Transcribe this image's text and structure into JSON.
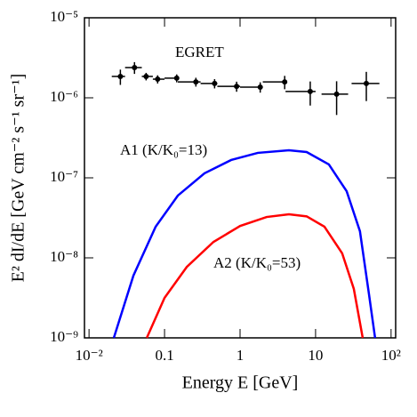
{
  "chart_data": {
    "type": "scatter",
    "xlabel": "Energy E [GeV]",
    "ylabel": "E² dI/dE [GeV cm⁻² s⁻¹ sr⁻¹]",
    "xscale": "log",
    "yscale": "log",
    "xlim": [
      0.0087,
      115
    ],
    "ylim": [
      1e-09,
      1e-05
    ],
    "xticks": [
      {
        "value": 0.01,
        "label": "10⁻²"
      },
      0.1,
      1,
      10,
      {
        "value": 100,
        "label": "10²"
      }
    ],
    "yticks": [
      {
        "value": 1e-09,
        "label": "10⁻⁹"
      },
      {
        "value": 1e-08,
        "label": "10⁻⁸"
      },
      {
        "value": 1e-07,
        "label": "10⁻⁷"
      },
      {
        "value": 1e-06,
        "label": "10⁻⁶"
      },
      {
        "value": 1e-05,
        "label": "10⁻⁵"
      }
    ],
    "series": [
      {
        "name": "EGRET",
        "type": "scatter",
        "color": "#000000",
        "x": [
          0.026,
          0.04,
          0.057,
          0.081,
          0.145,
          0.26,
          0.46,
          0.9,
          1.85,
          3.9,
          8.5,
          19,
          47
        ],
        "values": [
          1.85e-06,
          2.39e-06,
          1.85e-06,
          1.71e-06,
          1.76e-06,
          1.58e-06,
          1.51e-06,
          1.39e-06,
          1.36e-06,
          1.58e-06,
          1.2e-06,
          1.11e-06,
          1.51e-06
        ],
        "yerr": [
          4e-07,
          4e-07,
          2e-07,
          2e-07,
          2e-07,
          2e-07,
          2e-07,
          2e-07,
          2e-07,
          3e-07,
          4e-07,
          5e-07,
          6e-07
        ],
        "x_low": [
          0.02,
          0.03,
          0.05,
          0.07,
          0.1,
          0.15,
          0.3,
          0.5,
          1,
          2,
          4,
          12,
          30
        ],
        "x_high": [
          0.03,
          0.05,
          0.07,
          0.1,
          0.15,
          0.3,
          0.5,
          1,
          2,
          4,
          10,
          27,
          70
        ]
      },
      {
        "name": "A1 (K/K₀=13)",
        "type": "line",
        "color": "#0000ff",
        "x": [
          0.0213,
          0.0387,
          0.0762,
          0.15,
          0.338,
          0.762,
          1.72,
          4.44,
          7.62,
          15.0,
          25.8,
          38.7,
          50.8,
          61.4
        ],
        "values": [
          1e-09,
          6e-09,
          2.45e-08,
          6e-08,
          1.14e-07,
          1.67e-07,
          2.05e-07,
          2.21e-07,
          2.1e-07,
          1.47e-07,
          6.8e-08,
          2.15e-08,
          3.6e-09,
          1e-09
        ]
      },
      {
        "name": "A2 (K/K₀=53)",
        "type": "line",
        "color": "#ff0000",
        "x": [
          0.0582,
          0.1,
          0.197,
          0.444,
          1.0,
          2.25,
          4.44,
          7.62,
          13.1,
          22.5,
          32.1,
          42.1
        ],
        "values": [
          1e-09,
          3.16e-09,
          7.7e-09,
          1.58e-08,
          2.5e-08,
          3.24e-08,
          3.5e-08,
          3.3e-08,
          2.45e-08,
          1.14e-08,
          4.1e-09,
          1e-09
        ]
      }
    ]
  }
}
